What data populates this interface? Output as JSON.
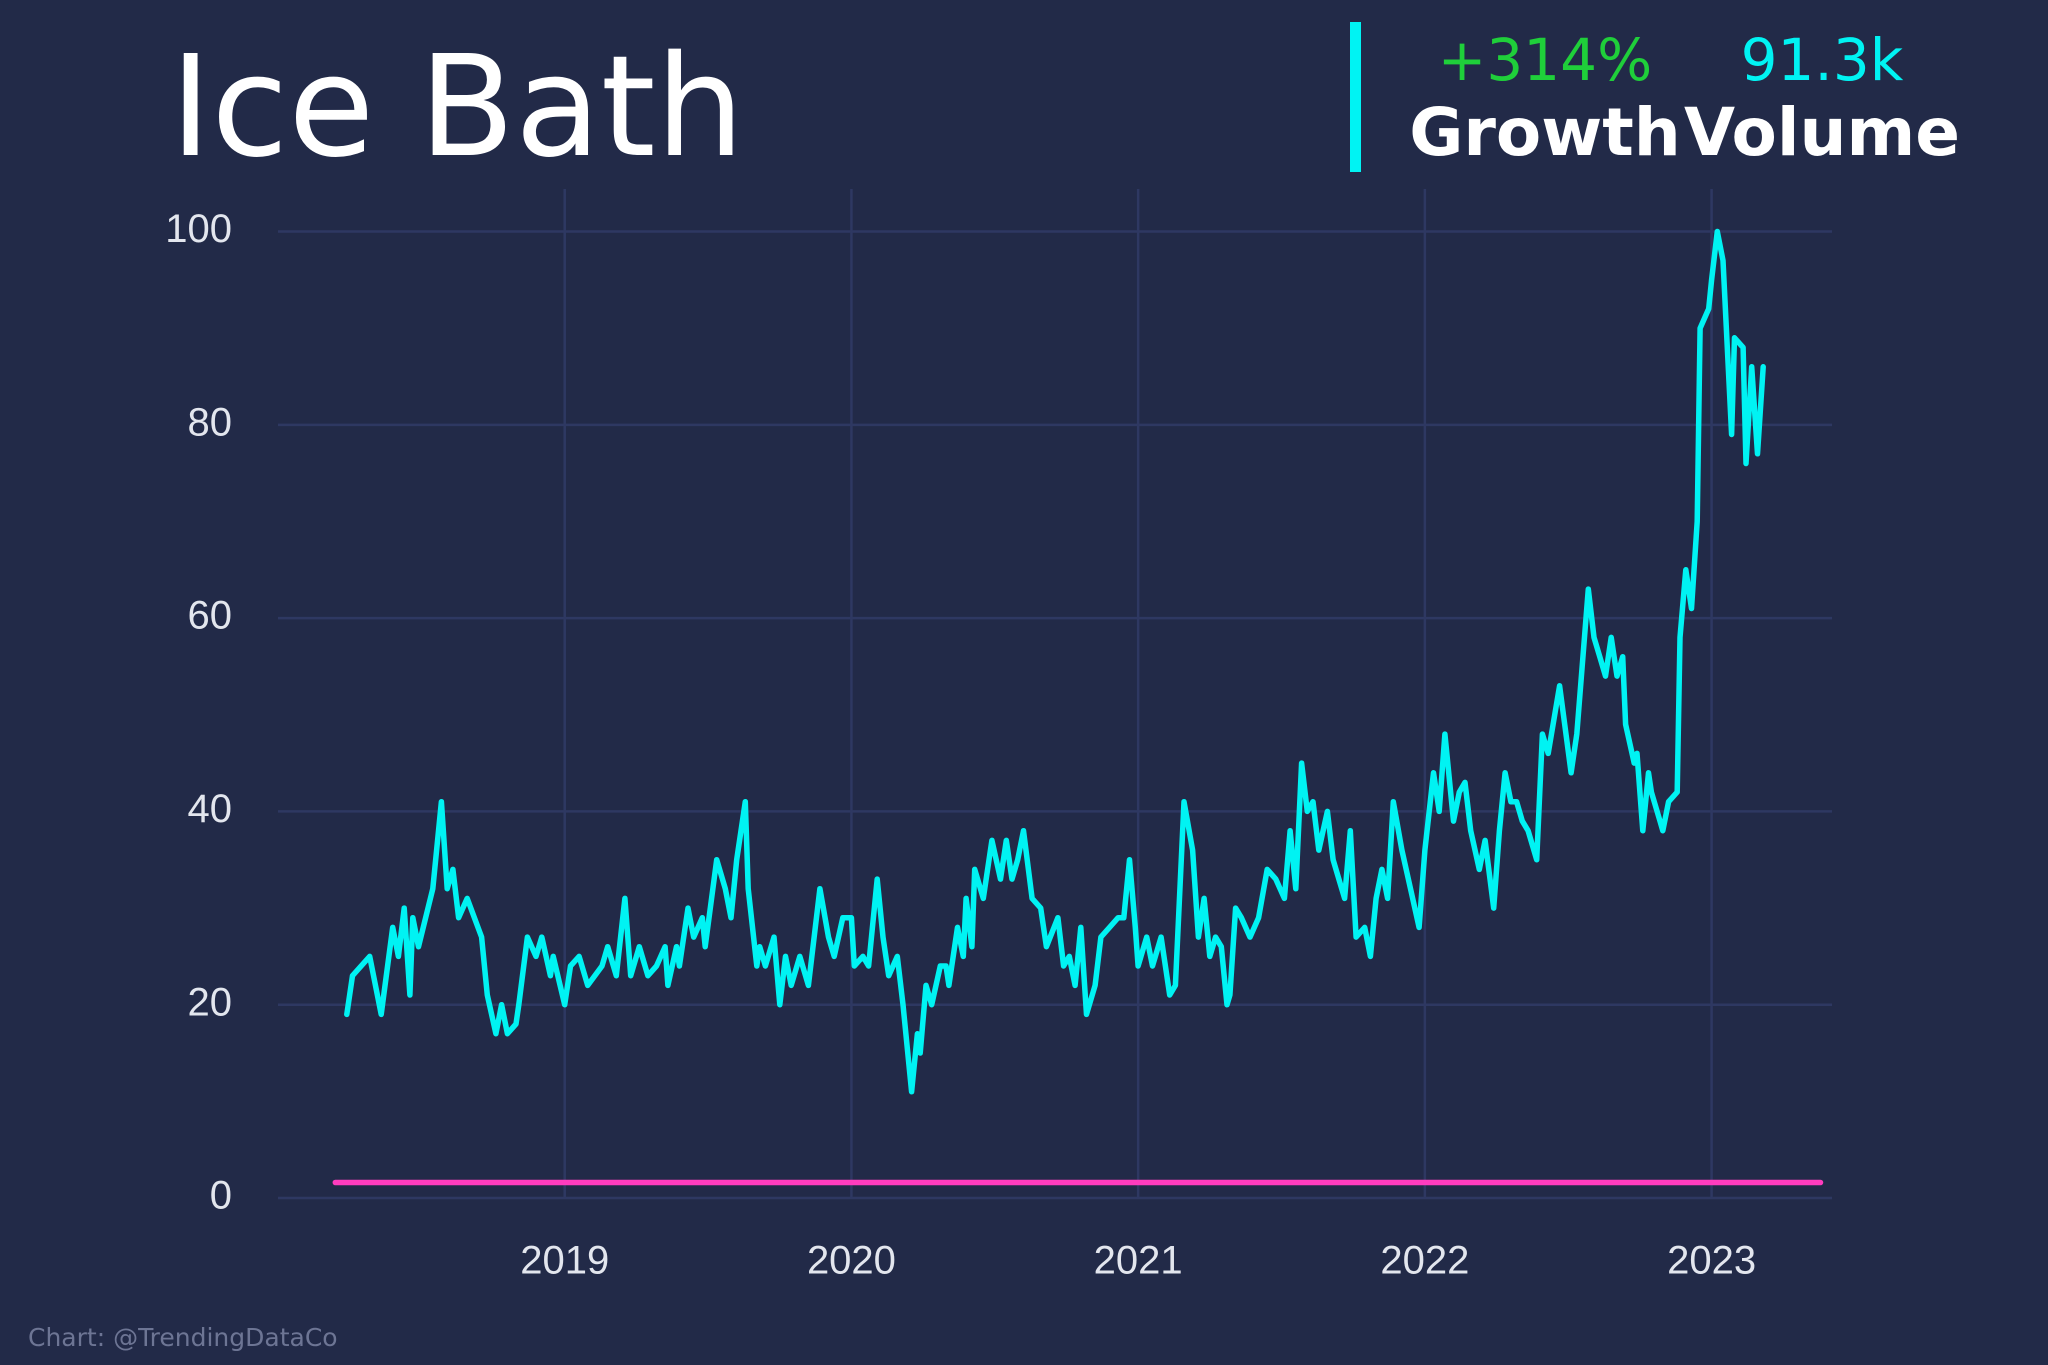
{
  "chart_data": {
    "type": "line",
    "title": "Ice Bath",
    "growth": "+314%",
    "growth_label": "Growth",
    "volume": "91.3k",
    "volume_label": "Volume",
    "credit": "Chart: @TrendingDataCo",
    "xlim": [
      2018.0,
      2023.42
    ],
    "xticks": [
      2019,
      2020,
      2021,
      2022,
      2023
    ],
    "ylim": [
      0,
      104.4
    ],
    "yticks": [
      0,
      20,
      40,
      60,
      80,
      100
    ],
    "grid": true,
    "series": [
      {
        "color": "#00f3f3",
        "x": [
          2018.24,
          2018.26,
          2018.32,
          2018.36,
          2018.4,
          2018.42,
          2018.44,
          2018.46,
          2018.47,
          2018.49,
          2018.54,
          2018.57,
          2018.59,
          2018.61,
          2018.63,
          2018.66,
          2018.71,
          2018.73,
          2018.76,
          2018.78,
          2018.8,
          2018.83,
          2018.84,
          2018.87,
          2018.9,
          2018.92,
          2018.95,
          2018.96,
          2019.0,
          2019.02,
          2019.05,
          2019.08,
          2019.13,
          2019.15,
          2019.18,
          2019.21,
          2019.23,
          2019.26,
          2019.29,
          2019.32,
          2019.35,
          2019.36,
          2019.39,
          2019.4,
          2019.43,
          2019.45,
          2019.48,
          2019.49,
          2019.53,
          2019.56,
          2019.58,
          2019.6,
          2019.63,
          2019.64,
          2019.67,
          2019.68,
          2019.7,
          2019.73,
          2019.75,
          2019.77,
          2019.79,
          2019.82,
          2019.85,
          2019.89,
          2019.92,
          2019.94,
          2019.97,
          2020.0,
          2020.01,
          2020.04,
          2020.06,
          2020.09,
          2020.11,
          2020.13,
          2020.16,
          2020.18,
          2020.21,
          2020.23,
          2020.24,
          2020.26,
          2020.28,
          2020.31,
          2020.33,
          2020.34,
          2020.37,
          2020.39,
          2020.4,
          2020.42,
          2020.43,
          2020.46,
          2020.49,
          2020.52,
          2020.54,
          2020.56,
          2020.58,
          2020.6,
          2020.63,
          2020.66,
          2020.68,
          2020.72,
          2020.74,
          2020.76,
          2020.78,
          2020.8,
          2020.82,
          2020.85,
          2020.87,
          2020.9,
          2020.93,
          2020.95,
          2020.97,
          2020.99,
          2021.0,
          2021.03,
          2021.05,
          2021.08,
          2021.11,
          2021.13,
          2021.16,
          2021.19,
          2021.21,
          2021.23,
          2021.25,
          2021.27,
          2021.29,
          2021.31,
          2021.32,
          2021.34,
          2021.36,
          2021.39,
          2021.42,
          2021.45,
          2021.48,
          2021.51,
          2021.53,
          2021.55,
          2021.57,
          2021.59,
          2021.61,
          2021.63,
          2021.66,
          2021.68,
          2021.72,
          2021.74,
          2021.76,
          2021.79,
          2021.81,
          2021.83,
          2021.85,
          2021.87,
          2021.89,
          2021.92,
          2021.95,
          2021.98,
          2022.0,
          2022.03,
          2022.05,
          2022.07,
          2022.1,
          2022.12,
          2022.14,
          2022.16,
          2022.19,
          2022.21,
          2022.24,
          2022.26,
          2022.28,
          2022.3,
          2022.32,
          2022.34,
          2022.36,
          2022.39,
          2022.41,
          2022.43,
          2022.47,
          2022.51,
          2022.53,
          2022.57,
          2022.59,
          2022.61,
          2022.63,
          2022.65,
          2022.67,
          2022.69,
          2022.7,
          2022.73,
          2022.74,
          2022.76,
          2022.78,
          2022.79,
          2022.82,
          2022.83,
          2022.85,
          2022.88,
          2022.89,
          2022.91,
          2022.93,
          2022.95,
          2022.96,
          2022.99,
          2023.0,
          2023.02,
          2023.04,
          2023.07,
          2023.08,
          2023.11,
          2023.12,
          2023.14,
          2023.16,
          2023.18
        ],
        "values": [
          19,
          23,
          25,
          19,
          28,
          25,
          30,
          21,
          29,
          26,
          32,
          41,
          32,
          34,
          29,
          31,
          27,
          21,
          17,
          20,
          17,
          18,
          20,
          27,
          25,
          27,
          23,
          25,
          20,
          24,
          25,
          22,
          24,
          26,
          23,
          31,
          23,
          26,
          23,
          24,
          26,
          22,
          26,
          24,
          30,
          27,
          29,
          26,
          35,
          32,
          29,
          35,
          41,
          32,
          24,
          26,
          24,
          27,
          20,
          25,
          22,
          25,
          22,
          32,
          27,
          25,
          29,
          29,
          24,
          25,
          24,
          33,
          27,
          23,
          25,
          20,
          11,
          17,
          15,
          22,
          20,
          24,
          24,
          22,
          28,
          25,
          31,
          26,
          34,
          31,
          37,
          33,
          37,
          33,
          35,
          38,
          31,
          30,
          26,
          29,
          24,
          25,
          22,
          28,
          19,
          22,
          27,
          28,
          29,
          29,
          35,
          28,
          24,
          27,
          24,
          27,
          21,
          22,
          41,
          36,
          27,
          31,
          25,
          27,
          26,
          20,
          21,
          30,
          29,
          27,
          29,
          34,
          33,
          31,
          38,
          32,
          45,
          40,
          41,
          36,
          40,
          35,
          31,
          38,
          27,
          28,
          25,
          31,
          34,
          31,
          41,
          36,
          32,
          28,
          36,
          44,
          40,
          48,
          39,
          42,
          43,
          38,
          34,
          37,
          30,
          38,
          44,
          41,
          41,
          39,
          38,
          35,
          48,
          46,
          53,
          44,
          48,
          63,
          58,
          56,
          54,
          58,
          54,
          56,
          49,
          45,
          46,
          38,
          44,
          42,
          39,
          38,
          41,
          42,
          58,
          65,
          61,
          70,
          90,
          92,
          95,
          100,
          97,
          79,
          89,
          88,
          76,
          86,
          77,
          86
        ]
      },
      {
        "color": "#ff3cbe",
        "x": [
          2018.2,
          2023.38
        ],
        "values": [
          1.6,
          1.6
        ]
      }
    ]
  }
}
